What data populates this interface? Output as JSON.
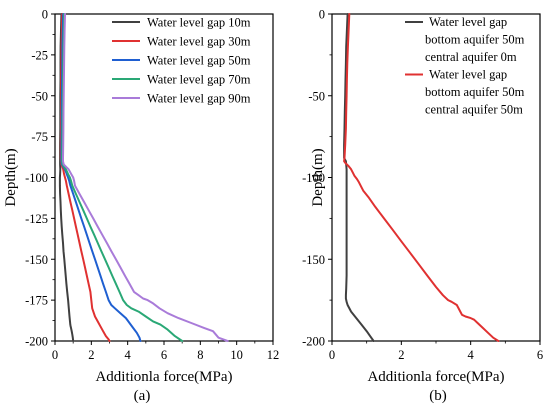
{
  "chart_data": [
    {
      "panel_label": "(a)",
      "type": "line",
      "xlabel": "Additionla force(MPa)",
      "ylabel": "Depth(m)",
      "xlim": [
        0,
        12
      ],
      "ylim": [
        0,
        -200
      ],
      "xticks": [
        0,
        2,
        4,
        6,
        8,
        10,
        12
      ],
      "yticks": [
        0,
        -25,
        -50,
        -75,
        -100,
        -125,
        -150,
        -175,
        -200
      ],
      "legend_position": "top-right",
      "grid": false,
      "series": [
        {
          "name": "Water level gap 10m",
          "color": "#404040",
          "x": [
            0.35,
            0.33,
            0.31,
            0.3,
            0.3,
            0.29,
            0.29,
            0.29,
            0.28,
            0.28,
            0.28,
            0.28,
            0.29,
            0.28,
            0.27,
            0.27,
            0.27,
            0.28,
            0.3,
            0.32,
            0.34,
            0.37,
            0.4,
            0.44,
            0.47,
            0.51,
            0.55,
            0.59,
            0.63,
            0.67,
            0.72,
            0.76,
            0.8,
            0.84,
            0.86,
            0.88,
            0.92,
            0.95,
            0.98,
            1.0
          ],
          "y": [
            0,
            -10,
            -20,
            -30,
            -40,
            -50,
            -60,
            -70,
            -80,
            -88,
            -90,
            -92,
            -95,
            -98,
            -100,
            -102,
            -105,
            -110,
            -115,
            -120,
            -125,
            -130,
            -135,
            -140,
            -145,
            -150,
            -155,
            -160,
            -165,
            -170,
            -175,
            -180,
            -185,
            -190,
            -191,
            -192,
            -194,
            -196,
            -198,
            -200
          ]
        },
        {
          "name": "Water level gap 30m",
          "color": "#e03131",
          "x": [
            0.4,
            0.38,
            0.36,
            0.35,
            0.34,
            0.34,
            0.33,
            0.33,
            0.32,
            0.32,
            0.33,
            0.35,
            0.45,
            0.5,
            0.55,
            0.6,
            0.65,
            0.75,
            0.85,
            0.95,
            1.05,
            1.15,
            1.25,
            1.35,
            1.45,
            1.55,
            1.65,
            1.75,
            1.85,
            1.95,
            2.0,
            2.05,
            2.2,
            2.35,
            2.5,
            2.65,
            2.8,
            2.95,
            3.0
          ],
          "y": [
            0,
            -10,
            -20,
            -30,
            -40,
            -50,
            -60,
            -70,
            -80,
            -88,
            -90,
            -92,
            -95,
            -98,
            -100,
            -102,
            -105,
            -110,
            -115,
            -120,
            -125,
            -130,
            -135,
            -140,
            -145,
            -150,
            -155,
            -160,
            -165,
            -170,
            -175,
            -180,
            -185,
            -188,
            -191,
            -194,
            -197,
            -199,
            -200
          ]
        },
        {
          "name": "Water level gap 50m",
          "color": "#1f5fd1",
          "x": [
            0.45,
            0.43,
            0.41,
            0.4,
            0.39,
            0.38,
            0.37,
            0.37,
            0.36,
            0.35,
            0.35,
            0.38,
            0.55,
            0.65,
            0.72,
            0.78,
            0.85,
            1.0,
            1.15,
            1.3,
            1.45,
            1.6,
            1.75,
            1.9,
            2.05,
            2.2,
            2.35,
            2.5,
            2.65,
            2.8,
            2.95,
            3.1,
            3.3,
            3.6,
            3.9,
            4.1,
            4.3,
            4.5,
            4.65,
            4.7
          ],
          "y": [
            0,
            -10,
            -20,
            -30,
            -40,
            -50,
            -60,
            -70,
            -80,
            -88,
            -90,
            -92,
            -95,
            -98,
            -100,
            -102,
            -105,
            -110,
            -115,
            -120,
            -125,
            -130,
            -135,
            -140,
            -145,
            -150,
            -155,
            -160,
            -165,
            -170,
            -175,
            -178,
            -180,
            -183,
            -186,
            -189,
            -192,
            -195,
            -198,
            -200
          ]
        },
        {
          "name": "Water level gap 70m",
          "color": "#2aa876",
          "x": [
            0.5,
            0.48,
            0.46,
            0.45,
            0.44,
            0.43,
            0.42,
            0.41,
            0.4,
            0.39,
            0.39,
            0.42,
            0.6,
            0.72,
            0.82,
            0.88,
            0.95,
            1.15,
            1.35,
            1.55,
            1.75,
            1.95,
            2.15,
            2.35,
            2.55,
            2.75,
            2.95,
            3.15,
            3.35,
            3.55,
            3.75,
            3.95,
            4.2,
            4.6,
            5.0,
            5.4,
            5.8,
            6.2,
            6.6,
            7.0
          ],
          "y": [
            0,
            -10,
            -20,
            -30,
            -40,
            -50,
            -60,
            -70,
            -80,
            -88,
            -90,
            -92,
            -95,
            -98,
            -100,
            -102,
            -105,
            -110,
            -115,
            -120,
            -125,
            -130,
            -135,
            -140,
            -145,
            -150,
            -155,
            -160,
            -165,
            -170,
            -175,
            -178,
            -180,
            -182,
            -185,
            -188,
            -190,
            -193,
            -197,
            -200
          ]
        },
        {
          "name": "Water level gap 90m",
          "color": "#a97bd9",
          "x": [
            0.55,
            0.53,
            0.51,
            0.5,
            0.49,
            0.48,
            0.47,
            0.46,
            0.45,
            0.44,
            0.44,
            0.48,
            0.75,
            0.9,
            1.0,
            1.05,
            1.1,
            1.35,
            1.6,
            1.85,
            2.1,
            2.35,
            2.6,
            2.85,
            3.1,
            3.35,
            3.6,
            3.85,
            4.1,
            4.35,
            4.6,
            4.85,
            5.1,
            5.4,
            5.75,
            6.2,
            6.8,
            7.5,
            8.2,
            8.7,
            9.0,
            9.5
          ],
          "y": [
            0,
            -10,
            -20,
            -30,
            -40,
            -50,
            -60,
            -70,
            -80,
            -88,
            -90,
            -92,
            -95,
            -98,
            -100,
            -102,
            -105,
            -110,
            -115,
            -120,
            -125,
            -130,
            -135,
            -140,
            -145,
            -150,
            -155,
            -160,
            -165,
            -170,
            -172,
            -174,
            -175,
            -177,
            -180,
            -183,
            -186,
            -189,
            -192,
            -194,
            -198,
            -200
          ]
        }
      ]
    },
    {
      "panel_label": "(b)",
      "type": "line",
      "xlabel": "Additionla force(MPa)",
      "ylabel": "Depth(m)",
      "xlim": [
        0,
        6
      ],
      "ylim": [
        0,
        -200
      ],
      "xticks": [
        0,
        2,
        4,
        6
      ],
      "yticks": [
        0,
        -50,
        -100,
        -150,
        -200
      ],
      "legend_position": "top-right",
      "grid": false,
      "series": [
        {
          "name": "Water level gap",
          "legend_lines": [
            "Water level gap",
            "bottom aquifer 50m",
            "central aquifer   0m"
          ],
          "color": "#404040",
          "x": [
            0.45,
            0.43,
            0.41,
            0.4,
            0.39,
            0.38,
            0.37,
            0.36,
            0.35,
            0.35,
            0.4,
            0.42,
            0.42,
            0.42,
            0.42,
            0.42,
            0.42,
            0.42,
            0.42,
            0.41,
            0.4,
            0.4,
            0.42,
            0.45,
            0.55,
            0.7,
            0.85,
            1.0,
            1.1,
            1.2
          ],
          "y": [
            0,
            -10,
            -20,
            -30,
            -40,
            -50,
            -60,
            -70,
            -80,
            -88,
            -90,
            -95,
            -100,
            -110,
            -120,
            -130,
            -140,
            -150,
            -160,
            -168,
            -172,
            -174,
            -176,
            -178,
            -182,
            -186,
            -190,
            -194,
            -197,
            -200
          ]
        },
        {
          "name": "Water level gap",
          "legend_lines": [
            "Water level gap",
            "bottom aquifer  50m",
            "central aquifer  50m"
          ],
          "color": "#e03131",
          "x": [
            0.5,
            0.48,
            0.46,
            0.44,
            0.43,
            0.42,
            0.41,
            0.4,
            0.38,
            0.36,
            0.35,
            0.38,
            0.48,
            0.55,
            0.6,
            0.65,
            0.72,
            0.78,
            0.85,
            0.9,
            1.05,
            1.25,
            1.5,
            1.75,
            2.0,
            2.25,
            2.5,
            2.75,
            3.0,
            3.2,
            3.35,
            3.45,
            3.6,
            3.7,
            3.75,
            3.85,
            4.0,
            4.1,
            4.2,
            4.35,
            4.5,
            4.65,
            4.8
          ],
          "y": [
            0,
            -10,
            -20,
            -30,
            -40,
            -50,
            -60,
            -70,
            -80,
            -88,
            -90,
            -91,
            -93,
            -95,
            -97,
            -99,
            -101,
            -103,
            -106,
            -108,
            -112,
            -118,
            -125,
            -132,
            -139,
            -146,
            -153,
            -160,
            -167,
            -172,
            -175,
            -176,
            -178,
            -182,
            -184,
            -185,
            -186,
            -187,
            -189,
            -192,
            -195,
            -198,
            -200
          ]
        }
      ]
    }
  ]
}
